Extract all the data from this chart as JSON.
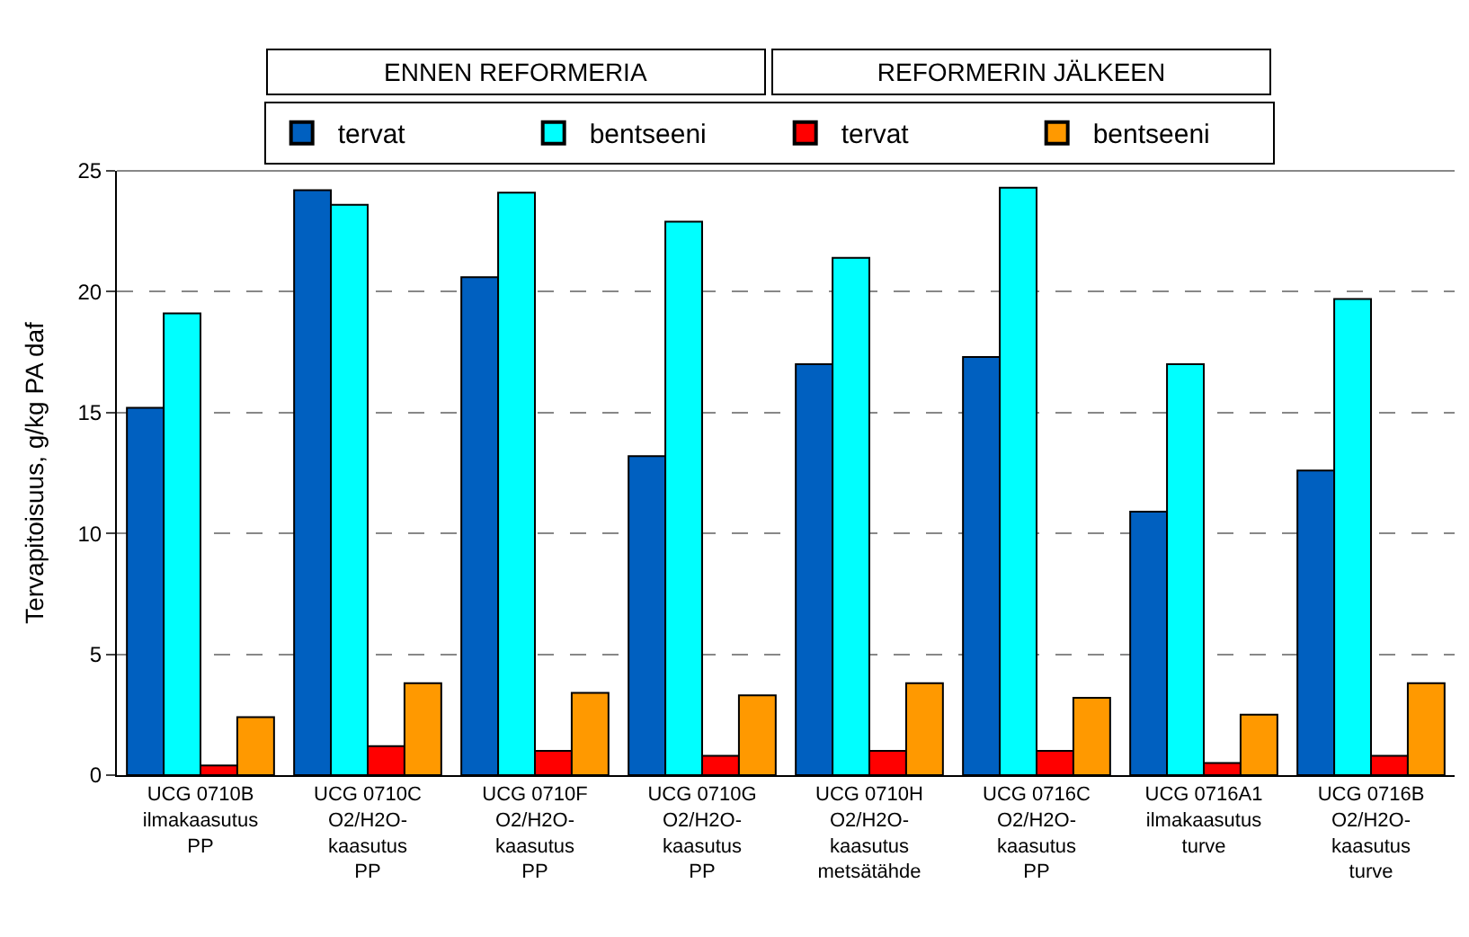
{
  "chart_data": {
    "type": "bar",
    "ylabel": "Tervapitoisuus, g/kg PA daf",
    "categories": [
      "UCG 0710B\nilmakaasutus\nPP",
      "UCG 0710C\nO2/H2O-\nkaasutus\nPP",
      "UCG 0710F\nO2/H2O-\nkaasutus\nPP",
      "UCG 0710G\nO2/H2O-\nkaasutus\nPP",
      "UCG 0710H\nO2/H2O-\nkaasutus\nmetsätähde",
      "UCG 0716C\nO2/H2O-\nkaasutus\nPP",
      "UCG 0716A1\nilmakaasutus\nturve",
      "UCG 0716B\nO2/H2O-\nkaasutus\nturve"
    ],
    "series": [
      {
        "name": "tervat",
        "color": "#0060c0",
        "values": [
          15.2,
          24.2,
          20.6,
          13.2,
          17.0,
          17.3,
          10.9,
          12.6
        ]
      },
      {
        "name": "bentseeni",
        "color": "#00ffff",
        "values": [
          19.1,
          23.6,
          24.1,
          22.9,
          21.4,
          24.3,
          17.0,
          19.7
        ]
      },
      {
        "name": "tervat",
        "color": "#ff0000",
        "values": [
          0.4,
          1.2,
          1.0,
          0.8,
          1.0,
          1.0,
          0.5,
          0.8
        ]
      },
      {
        "name": "bentseeni",
        "color": "#ff9900",
        "values": [
          2.4,
          3.8,
          3.4,
          3.3,
          3.8,
          3.2,
          2.5,
          3.8
        ]
      }
    ],
    "annotations": [
      "ENNEN REFORMERIA",
      "REFORMERIN JÄLKEEN"
    ],
    "ylim": [
      0,
      25
    ],
    "yticks": [
      0,
      5,
      10,
      15,
      20,
      25
    ],
    "grid": "y",
    "legend": "top"
  }
}
